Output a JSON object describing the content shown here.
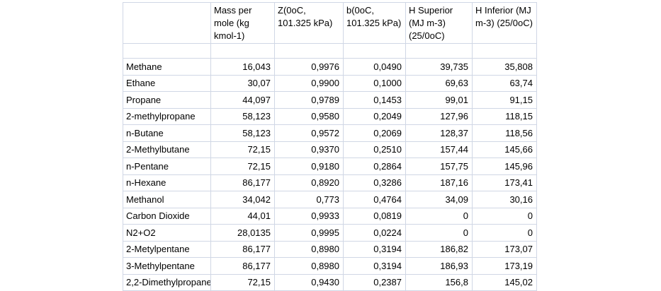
{
  "colors": {
    "grid": "#d0d7e5",
    "text": "#000000",
    "background": "#ffffff"
  },
  "table": {
    "columns": [
      {
        "label": ""
      },
      {
        "label": "Mass per mole (kg kmol-1)"
      },
      {
        "label": "Z(0oC, 101.325 kPa)"
      },
      {
        "label": "b(0oC, 101.325 kPa)"
      },
      {
        "label": "H Superior (MJ m-3) (25/0oC)"
      },
      {
        "label": "H Inferior (MJ m-3) (25/0oC)"
      }
    ],
    "rows": [
      [
        "Methane",
        "16,043",
        "0,9976",
        "0,0490",
        "39,735",
        "35,808"
      ],
      [
        "Ethane",
        "30,07",
        "0,9900",
        "0,1000",
        "69,63",
        "63,74"
      ],
      [
        "Propane",
        "44,097",
        "0,9789",
        "0,1453",
        "99,01",
        "91,15"
      ],
      [
        "2-methylpropane",
        "58,123",
        "0,9580",
        "0,2049",
        "127,96",
        "118,15"
      ],
      [
        "n-Butane",
        "58,123",
        "0,9572",
        "0,2069",
        "128,37",
        "118,56"
      ],
      [
        "2-Methylbutane",
        "72,15",
        "0,9370",
        "0,2510",
        "157,44",
        "145,66"
      ],
      [
        "n-Pentane",
        "72,15",
        "0,9180",
        "0,2864",
        "157,75",
        "145,96"
      ],
      [
        "n-Hexane",
        "86,177",
        "0,8920",
        "0,3286",
        "187,16",
        "173,41"
      ],
      [
        "Methanol",
        "34,042",
        "0,773",
        "0,4764",
        "34,09",
        "30,16"
      ],
      [
        "Carbon Dioxide",
        "44,01",
        "0,9933",
        "0,0819",
        "0",
        "0"
      ],
      [
        "N2+O2",
        "28,0135",
        "0,9995",
        "0,0224",
        "0",
        "0"
      ],
      [
        "2-Metylpentane",
        "86,177",
        "0,8980",
        "0,3194",
        "186,82",
        "173,07"
      ],
      [
        "3-Methylpentane",
        "86,177",
        "0,8980",
        "0,3194",
        "186,93",
        "173,19"
      ],
      [
        "2,2-Dimethylpropane",
        "72,15",
        "0,9430",
        "0,2387",
        "156,8",
        "145,02"
      ]
    ]
  }
}
